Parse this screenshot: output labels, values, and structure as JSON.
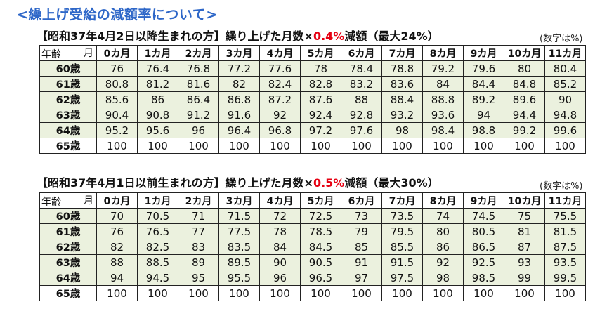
{
  "title": "<繰上げ受給の減額率について>",
  "unit_note": "(数字は%)",
  "corner": {
    "month": "月",
    "age": "年齢"
  },
  "months": [
    "0カ月",
    "1カ月",
    "2カ月",
    "3カ月",
    "4カ月",
    "5カ月",
    "6カ月",
    "7カ月",
    "8カ月",
    "9カ月",
    "10カ月",
    "11カ月"
  ],
  "tables": [
    {
      "heading_pre": "【昭和37年4月2日以降生まれの方】繰り上げた月数×",
      "heading_rate": "0.4%",
      "heading_post": "減額（最大24%）",
      "rows": [
        {
          "age": "60歳",
          "values": [
            "76",
            "76.4",
            "76.8",
            "77.2",
            "77.6",
            "78",
            "78.4",
            "78.8",
            "79.2",
            "79.6",
            "80",
            "80.4"
          ]
        },
        {
          "age": "61歳",
          "values": [
            "80.8",
            "81.2",
            "81.6",
            "82",
            "82.4",
            "82.8",
            "83.2",
            "83.6",
            "84",
            "84.4",
            "84.8",
            "85.2"
          ]
        },
        {
          "age": "62歳",
          "values": [
            "85.6",
            "86",
            "86.4",
            "86.8",
            "87.2",
            "87.6",
            "88",
            "88.4",
            "88.8",
            "89.2",
            "89.6",
            "90"
          ]
        },
        {
          "age": "63歳",
          "values": [
            "90.4",
            "90.8",
            "91.2",
            "91.6",
            "92",
            "92.4",
            "92.8",
            "93.2",
            "93.6",
            "94",
            "94.4",
            "94.8"
          ]
        },
        {
          "age": "64歳",
          "values": [
            "95.2",
            "95.6",
            "96",
            "96.4",
            "96.8",
            "97.2",
            "97.6",
            "98",
            "98.4",
            "98.8",
            "99.2",
            "99.6"
          ]
        },
        {
          "age": "65歳",
          "values": [
            "100",
            "100",
            "100",
            "100",
            "100",
            "100",
            "100",
            "100",
            "100",
            "100",
            "100",
            "100"
          ]
        }
      ]
    },
    {
      "heading_pre": "【昭和37年4月1日以前生まれの方】繰り上げた月数×",
      "heading_rate": "0.5%",
      "heading_post": "減額（最大30%）",
      "rows": [
        {
          "age": "60歳",
          "values": [
            "70",
            "70.5",
            "71",
            "71.5",
            "72",
            "72.5",
            "73",
            "73.5",
            "74",
            "74.5",
            "75",
            "75.5"
          ]
        },
        {
          "age": "61歳",
          "values": [
            "76",
            "76.5",
            "77",
            "77.5",
            "78",
            "78.5",
            "79",
            "79.5",
            "80",
            "80.5",
            "81",
            "81.5"
          ]
        },
        {
          "age": "62歳",
          "values": [
            "82",
            "82.5",
            "83",
            "83.5",
            "84",
            "84.5",
            "85",
            "85.5",
            "86",
            "86.5",
            "87",
            "87.5"
          ]
        },
        {
          "age": "63歳",
          "values": [
            "88",
            "88.5",
            "89",
            "89.5",
            "90",
            "90.5",
            "91",
            "91.5",
            "92",
            "92.5",
            "93",
            "93.5"
          ]
        },
        {
          "age": "64歳",
          "values": [
            "94",
            "94.5",
            "95",
            "95.5",
            "96",
            "96.5",
            "97",
            "97.5",
            "98",
            "98.5",
            "99",
            "99.5"
          ]
        },
        {
          "age": "65歳",
          "values": [
            "100",
            "100",
            "100",
            "100",
            "100",
            "100",
            "100",
            "100",
            "100",
            "100",
            "100",
            "100"
          ]
        }
      ]
    }
  ],
  "colors": {
    "title": "#2e67c8",
    "rate_red": "#e60012",
    "shade": "#ebf1de"
  }
}
